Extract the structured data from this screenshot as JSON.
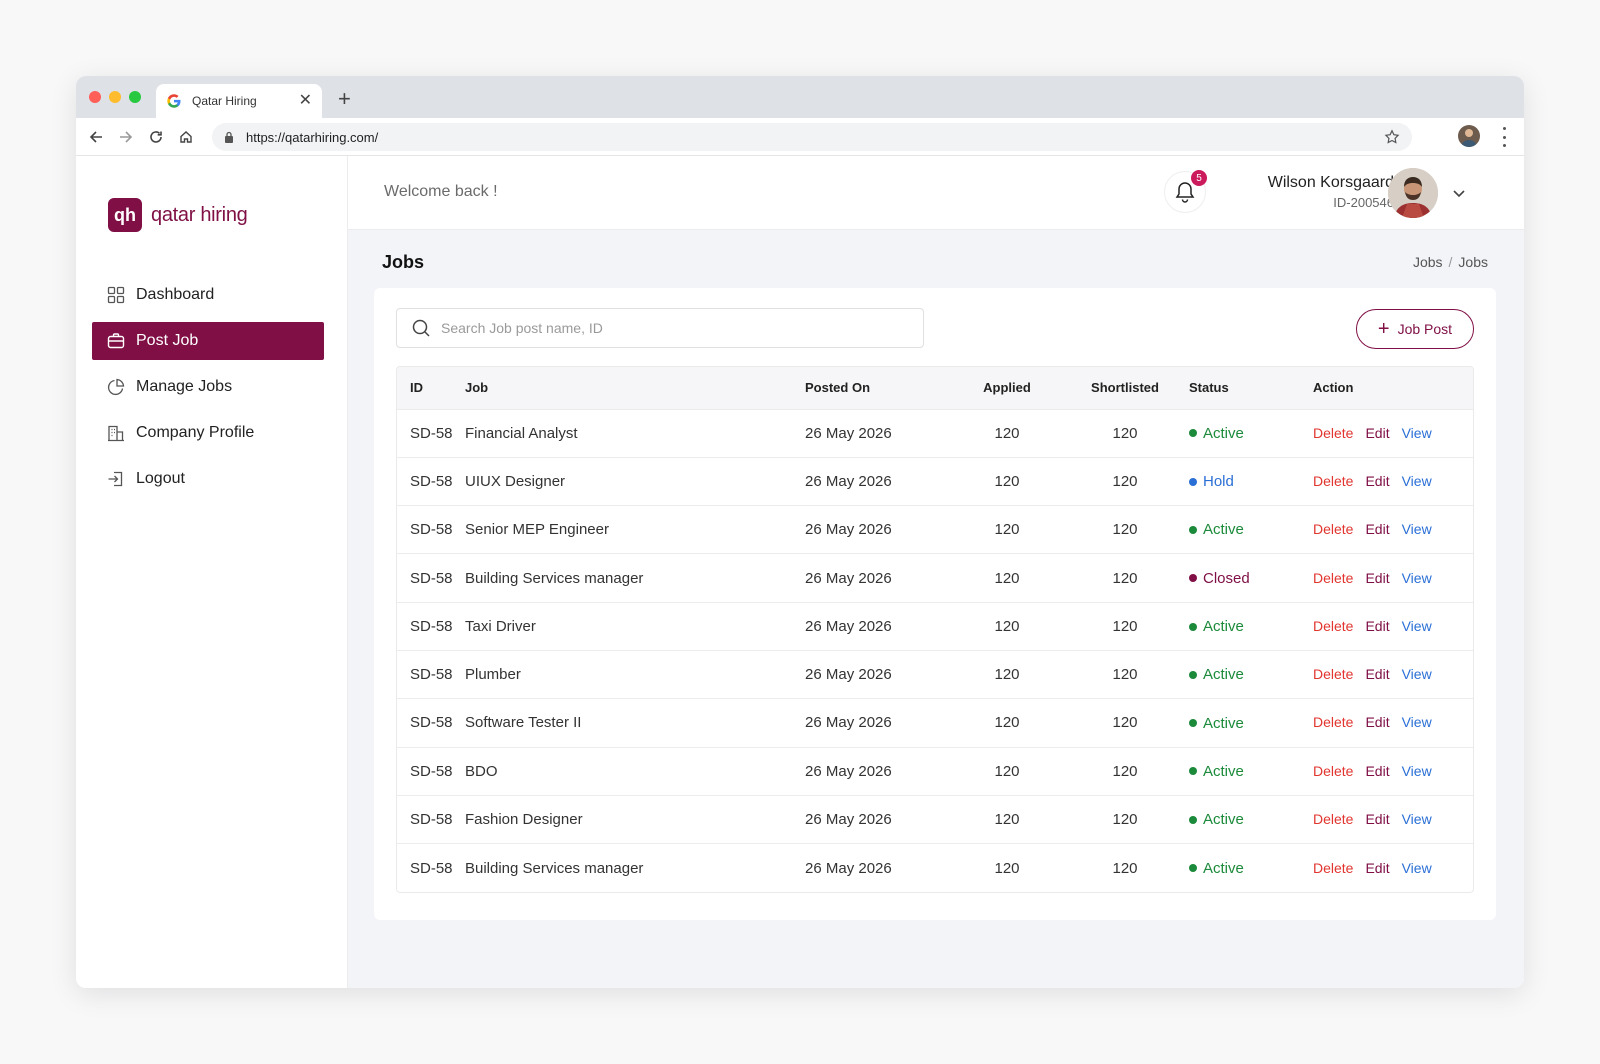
{
  "browser": {
    "tab_title": "Qatar Hiring",
    "url": "https://qatarhiring.com/"
  },
  "brand": {
    "logo_mark": "qh",
    "logo_text": "qatar hiring",
    "accent": "#7f0f45"
  },
  "sidebar": {
    "items": [
      {
        "label": "Dashboard",
        "icon": "grid-icon",
        "active": false
      },
      {
        "label": "Post Job",
        "icon": "briefcase-icon",
        "active": true
      },
      {
        "label": "Manage Jobs",
        "icon": "pie-chart-icon",
        "active": false
      },
      {
        "label": "Company Profile",
        "icon": "building-icon",
        "active": false
      },
      {
        "label": "Logout",
        "icon": "logout-icon",
        "active": false
      }
    ]
  },
  "header": {
    "welcome": "Welcome back !",
    "notification_count": "5",
    "user_name": "Wilson Korsgaard",
    "user_id": "ID-200546"
  },
  "page": {
    "title": "Jobs",
    "breadcrumb": [
      "Jobs",
      "Jobs"
    ]
  },
  "search": {
    "placeholder": "Search Job post name, ID",
    "value": ""
  },
  "job_post_button": "Job Post",
  "table": {
    "columns": [
      "ID",
      "Job",
      "Posted On",
      "Applied",
      "Shortlisted",
      "Status",
      "Action"
    ],
    "actions": [
      "Delete",
      "Edit",
      "View"
    ],
    "rows": [
      {
        "id": "SD-58",
        "job": "Financial Analyst",
        "posted": "26 May 2026",
        "applied": "120",
        "shortlisted": "120",
        "status": "Active"
      },
      {
        "id": "SD-58",
        "job": "UIUX Designer",
        "posted": "26 May 2026",
        "applied": "120",
        "shortlisted": "120",
        "status": "Hold"
      },
      {
        "id": "SD-58",
        "job": "Senior MEP Engineer",
        "posted": "26 May 2026",
        "applied": "120",
        "shortlisted": "120",
        "status": "Active"
      },
      {
        "id": "SD-58",
        "job": "Building Services manager",
        "posted": "26 May 2026",
        "applied": "120",
        "shortlisted": "120",
        "status": "Closed"
      },
      {
        "id": "SD-58",
        "job": "Taxi Driver",
        "posted": "26 May 2026",
        "applied": "120",
        "shortlisted": "120",
        "status": "Active"
      },
      {
        "id": "SD-58",
        "job": "Plumber",
        "posted": "26 May 2026",
        "applied": "120",
        "shortlisted": "120",
        "status": "Active"
      },
      {
        "id": "SD-58",
        "job": "Software Tester II",
        "posted": "26 May 2026",
        "applied": "120",
        "shortlisted": "120",
        "status": "Active"
      },
      {
        "id": "SD-58",
        "job": "BDO",
        "posted": "26 May 2026",
        "applied": "120",
        "shortlisted": "120",
        "status": "Active"
      },
      {
        "id": "SD-58",
        "job": "Fashion Designer",
        "posted": "26 May 2026",
        "applied": "120",
        "shortlisted": "120",
        "status": "Active"
      },
      {
        "id": "SD-58",
        "job": "Building Services manager",
        "posted": "26 May 2026",
        "applied": "120",
        "shortlisted": "120",
        "status": "Active"
      }
    ]
  },
  "status_colors": {
    "Active": "#1b8a3a",
    "Hold": "#2a6fd6",
    "Closed": "#7f0f45"
  }
}
